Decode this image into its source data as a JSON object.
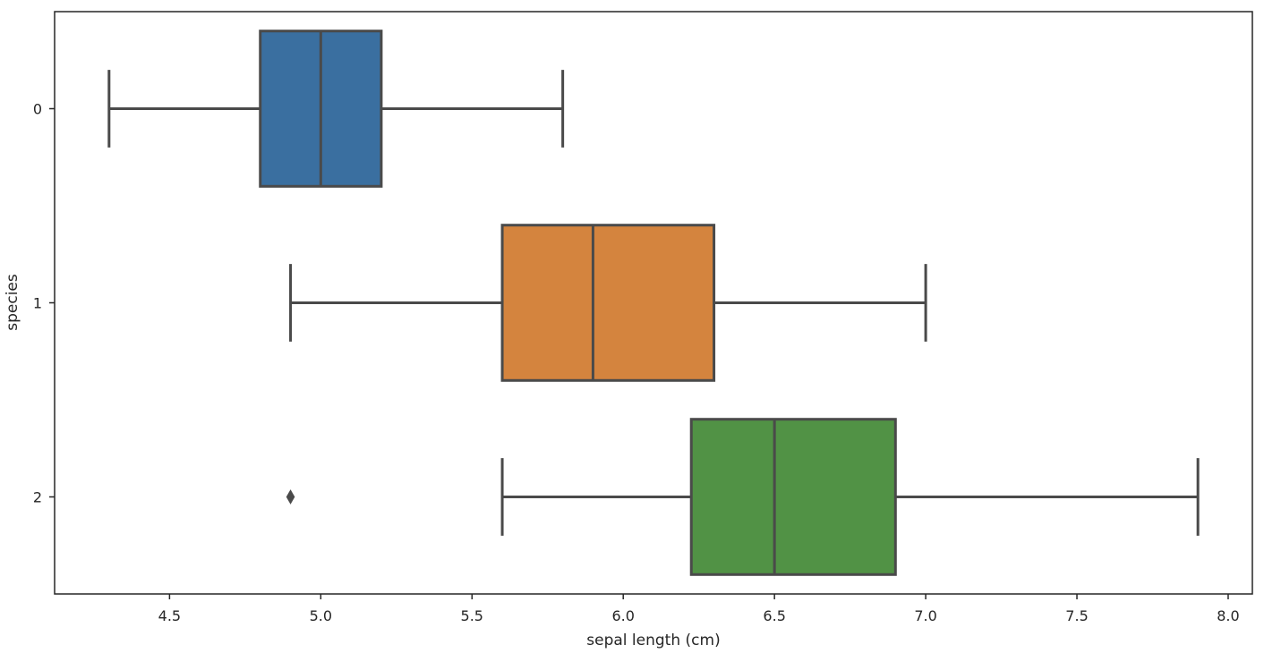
{
  "chart_data": {
    "type": "box",
    "orientation": "horizontal",
    "title": "",
    "xlabel": "sepal length (cm)",
    "ylabel": "species",
    "xlim": [
      4.12,
      8.08
    ],
    "xticks": [
      "4.5",
      "5.0",
      "5.5",
      "6.0",
      "6.5",
      "7.0",
      "7.5",
      "8.0"
    ],
    "grid": false,
    "legend": "none",
    "categories": [
      "0",
      "1",
      "2"
    ],
    "boxes": [
      {
        "category": "0",
        "whisker_low": 4.3,
        "q1": 4.8,
        "median": 5.0,
        "q3": 5.2,
        "whisker_high": 5.8,
        "outliers": [],
        "color": "#3a6fa0"
      },
      {
        "category": "1",
        "whisker_low": 4.9,
        "q1": 5.6,
        "median": 5.9,
        "q3": 6.3,
        "whisker_high": 7.0,
        "outliers": [],
        "color": "#d4843e"
      },
      {
        "category": "2",
        "whisker_low": 5.6,
        "q1": 6.225,
        "median": 6.5,
        "q3": 6.9,
        "whisker_high": 7.9,
        "outliers": [
          4.9
        ],
        "color": "#519245"
      }
    ]
  }
}
